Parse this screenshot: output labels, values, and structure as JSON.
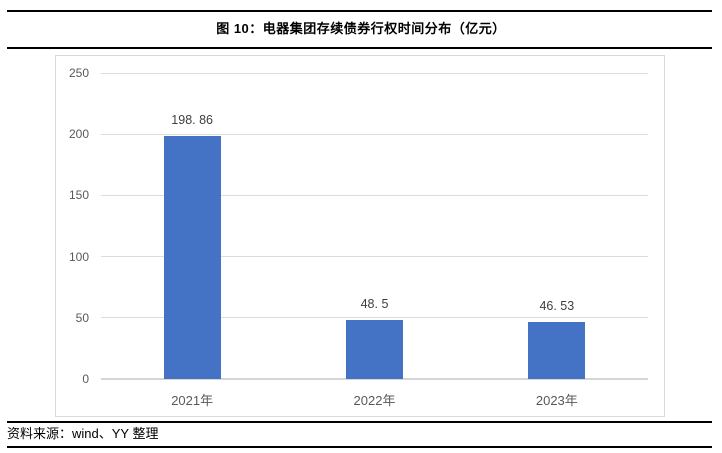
{
  "figure": {
    "title": "图 10：电器集团存续债券行权时间分布（亿元）",
    "source": "资料来源：wind、YY 整理"
  },
  "chart_data": {
    "type": "bar",
    "title": "图 10：电器集团存续债券行权时间分布（亿元）",
    "categories": [
      "2021年",
      "2022年",
      "2023年"
    ],
    "values": [
      198.86,
      48.5,
      46.53
    ],
    "value_labels": [
      "198. 86",
      "48. 5",
      "46. 53"
    ],
    "xlabel": "",
    "ylabel": "",
    "unit": "亿元",
    "y_ticks": [
      0,
      50,
      100,
      150,
      200,
      250
    ],
    "ylim": [
      0,
      250
    ],
    "grid": true,
    "legend_position": "none"
  },
  "colors": {
    "bar": "#4472C4",
    "gridline": "#dcdcdc",
    "axis_line": "#d6d6d6",
    "frame_border": "#d9d9d9",
    "tick_label": "#595959",
    "value_label": "#3f3f3f",
    "rule": "#000000"
  }
}
